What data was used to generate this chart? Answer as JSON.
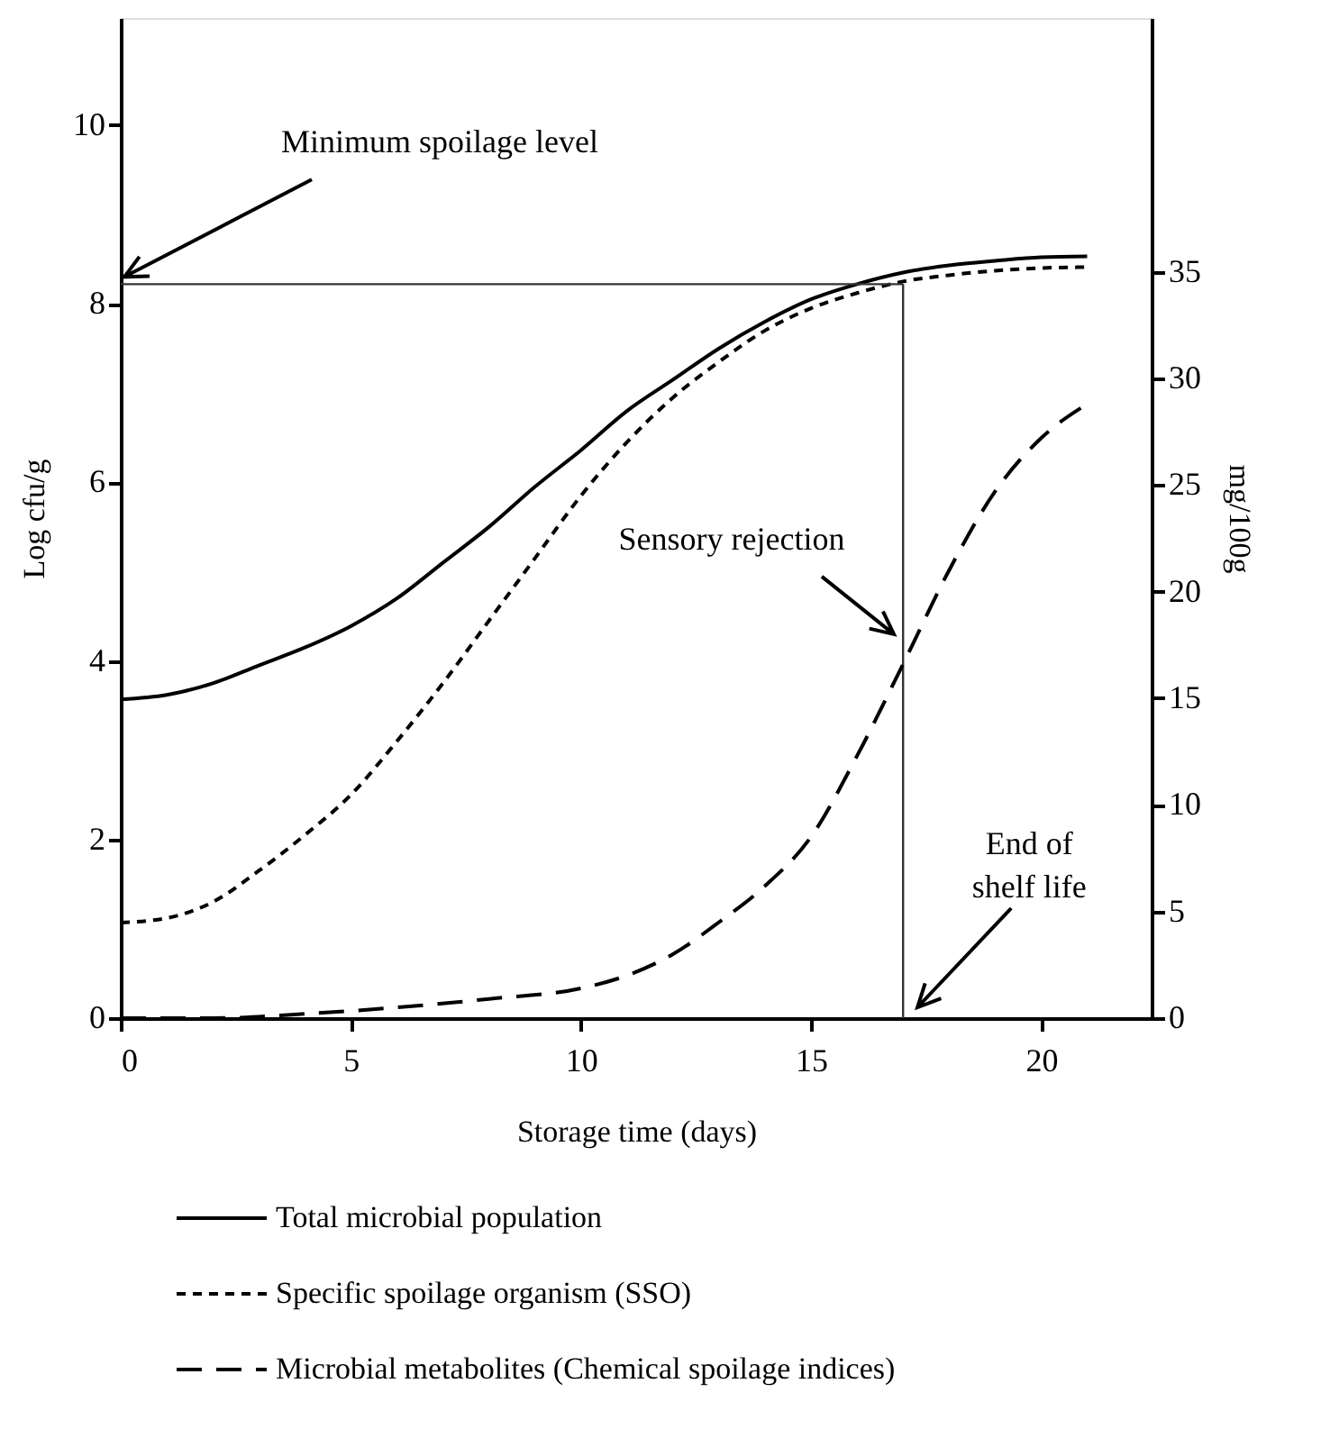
{
  "chart_data": {
    "type": "line",
    "xlabel": "Storage time (days)",
    "ylabel": "Log cfu/g",
    "y2label": "mg/100g",
    "xlim": [
      0,
      22.4
    ],
    "xticks": [
      0,
      5,
      10,
      15,
      20
    ],
    "ylim": [
      0,
      11.2
    ],
    "yticks": [
      0,
      2,
      4,
      6,
      8,
      10
    ],
    "y2lim": [
      0,
      46.9
    ],
    "y2ticks": [
      0,
      5,
      10,
      15,
      20,
      25,
      30,
      35
    ],
    "x": [
      0,
      1,
      2,
      3,
      4,
      5,
      6,
      7,
      8,
      9,
      10,
      11,
      12,
      13,
      14,
      15,
      16,
      17,
      18,
      19,
      20,
      21
    ],
    "series": [
      {
        "name": "Total microbial population",
        "color": "#000000",
        "line_style": "solid",
        "values": [
          3.57,
          3.62,
          3.75,
          3.95,
          4.15,
          4.39,
          4.7,
          5.1,
          5.5,
          5.95,
          6.36,
          6.8,
          7.15,
          7.5,
          7.8,
          8.05,
          8.22,
          8.35,
          8.43,
          8.48,
          8.52,
          8.53
        ]
      },
      {
        "name": "Specific spoilage organism (SSO)",
        "color": "#000000",
        "line_style": "dotted",
        "values": [
          1.07,
          1.12,
          1.3,
          1.65,
          2.05,
          2.5,
          3.1,
          3.75,
          4.45,
          5.15,
          5.85,
          6.45,
          6.95,
          7.35,
          7.7,
          7.95,
          8.12,
          8.25,
          8.32,
          8.37,
          8.4,
          8.41
        ]
      },
      {
        "name": "Microbial metabolites (Chemical spoilage indices)",
        "color": "#000000",
        "line_style": "dashed",
        "axis": "y2",
        "x": [
          0,
          2,
          4,
          6,
          8,
          10,
          11,
          12,
          13,
          14,
          15,
          16,
          17,
          18,
          19,
          20,
          21
        ],
        "values": [
          0,
          0,
          0.2,
          0.5,
          0.9,
          1.4,
          2.0,
          3.0,
          4.5,
          6.2,
          8.5,
          12.3,
          16.6,
          21,
          24.7,
          27.2,
          28.8
        ]
      }
    ],
    "ref_lines": [
      {
        "axis": "y",
        "value": 8.22,
        "color": "#333333"
      },
      {
        "axis": "x",
        "value": 17,
        "color": "#333333"
      }
    ],
    "annotations": [
      "Minimum spoilage level",
      {
        "text": "Sensory rejection",
        "x": 16.8,
        "y": 4.3
      },
      "End of\nshelf life"
    ],
    "legend": "bottom",
    "grid": false
  }
}
